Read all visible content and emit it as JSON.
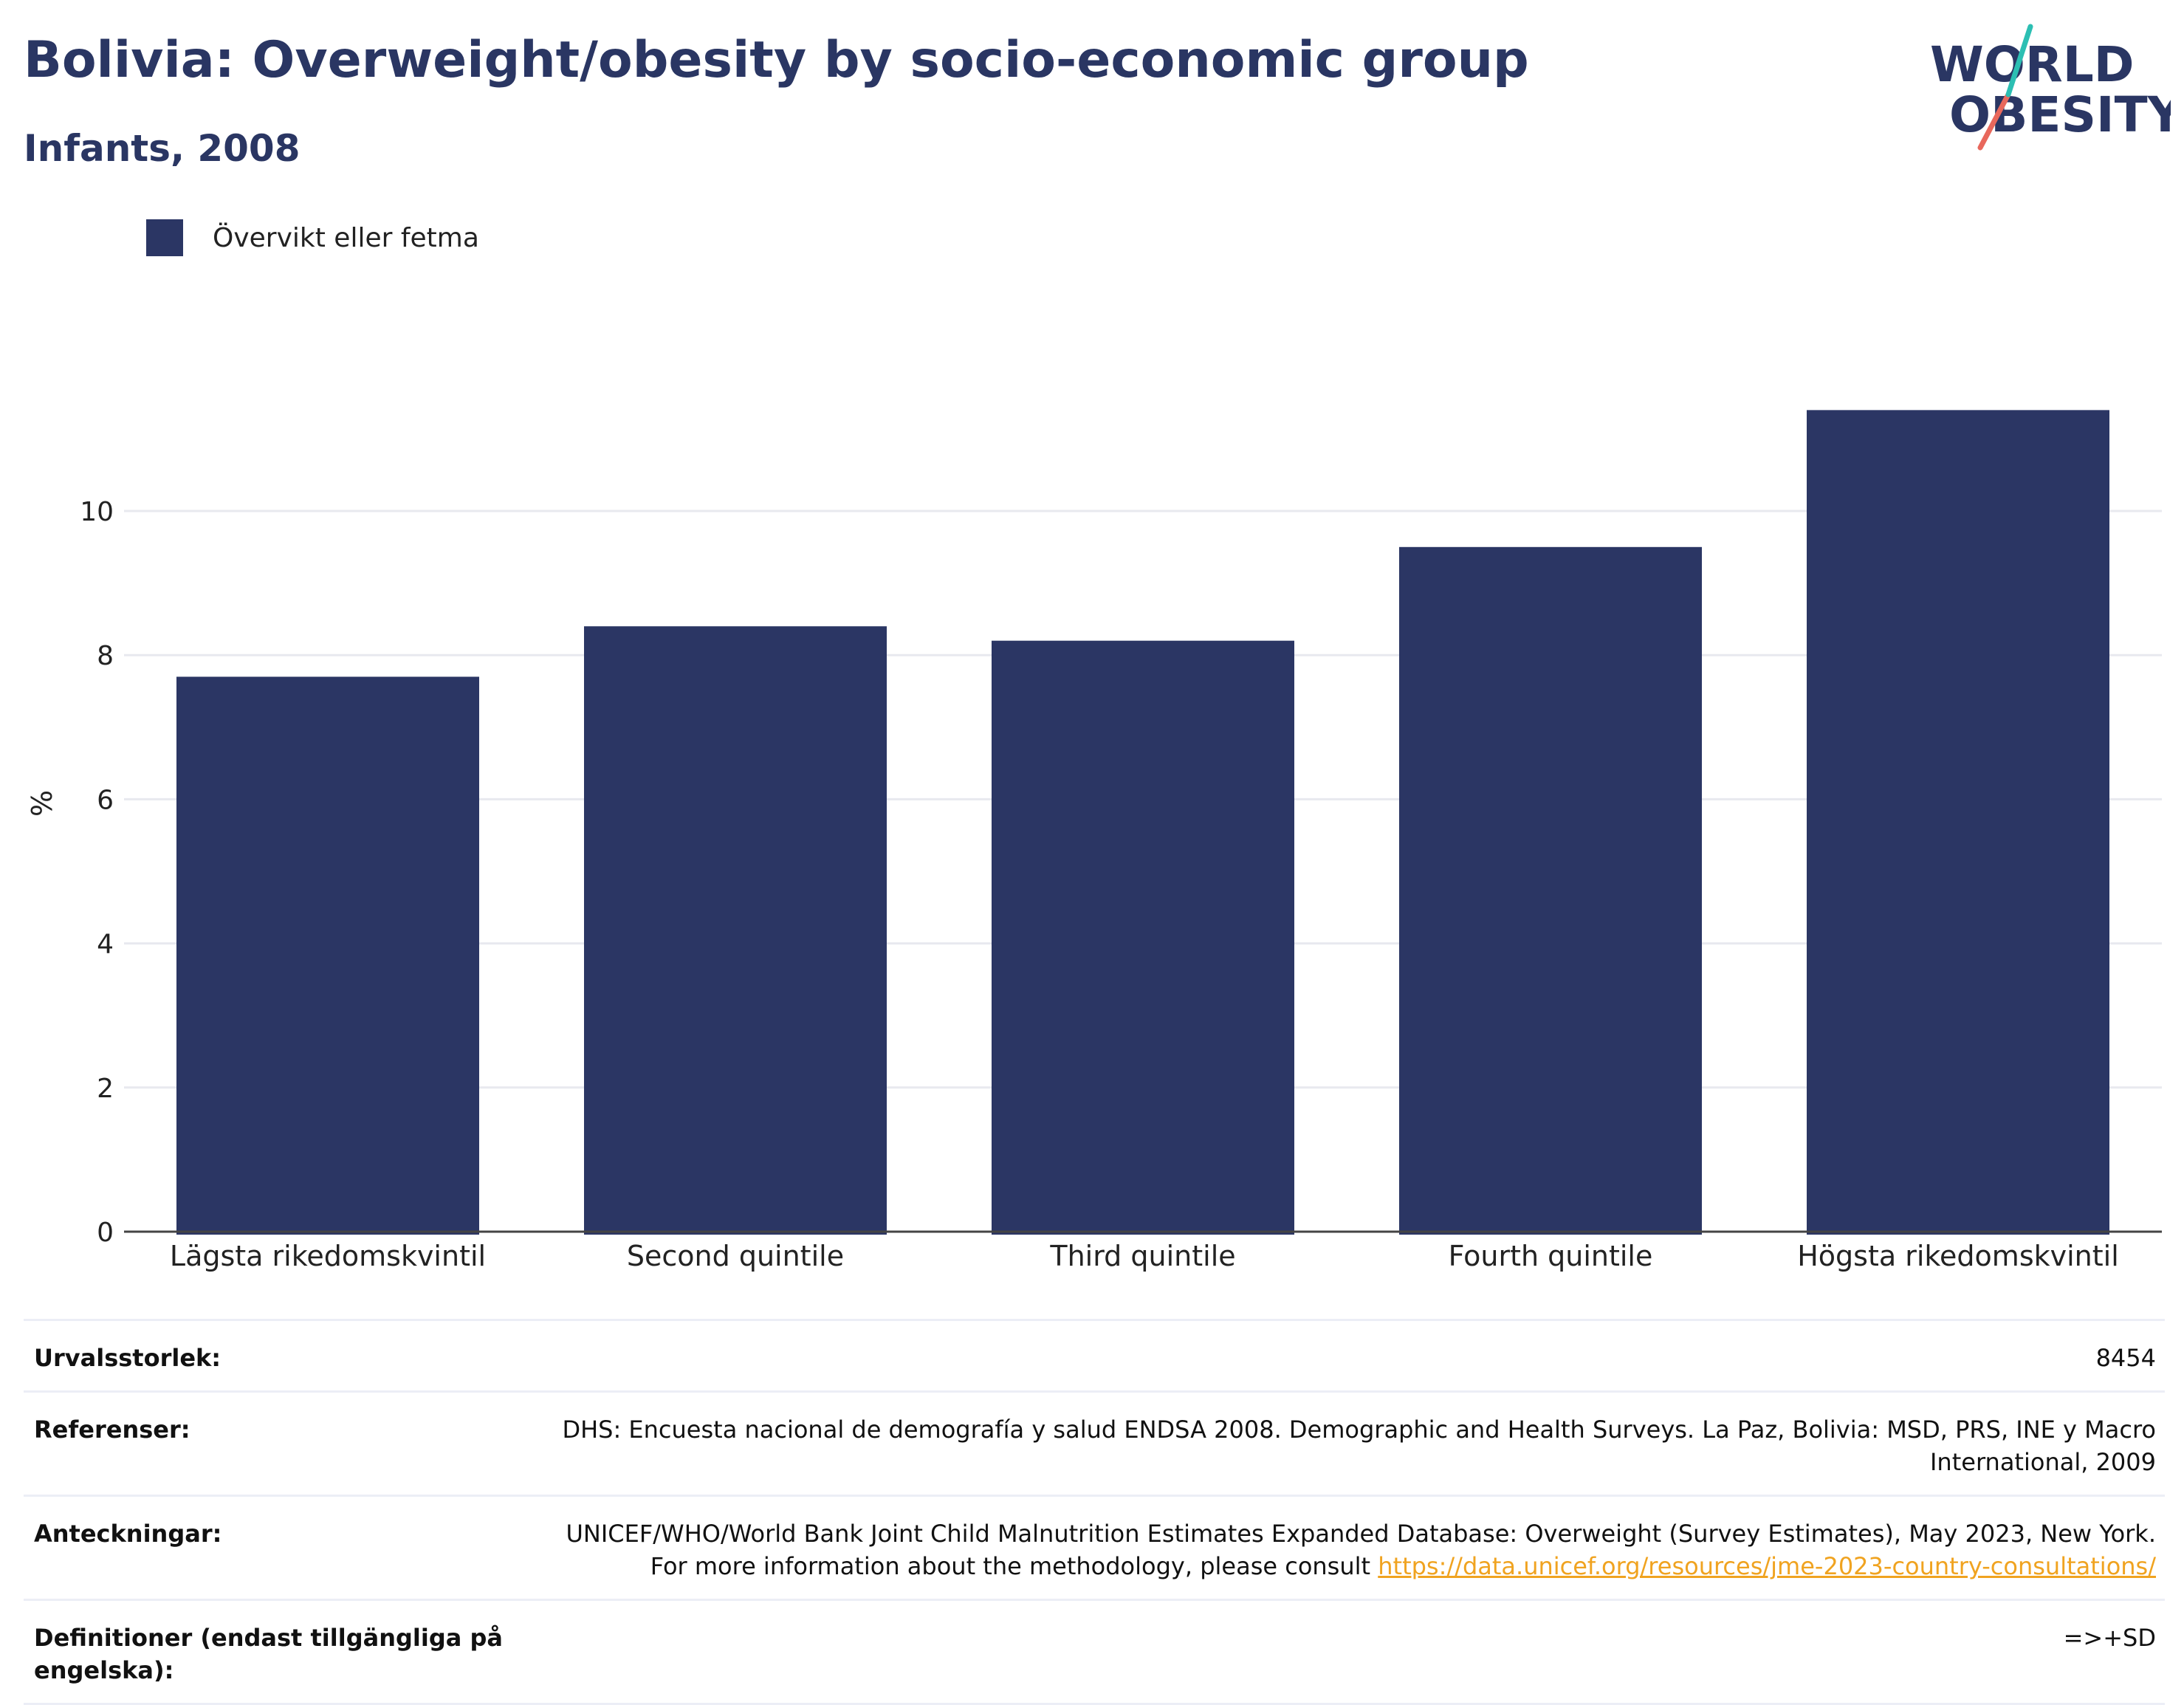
{
  "header": {
    "title": "Bolivia: Overweight/obesity by socio-economic group",
    "subtitle": "Infants, 2008"
  },
  "logo": {
    "line1": "WORLD",
    "line2": "OBESITY"
  },
  "legend": {
    "label": "Övervikt eller fetma",
    "color": "#2b3664"
  },
  "chart_data": {
    "type": "bar",
    "categories": [
      "Lägsta rikedomskvintil",
      "Second quintile",
      "Third quintile",
      "Fourth quintile",
      "Högsta rikedomskvintil"
    ],
    "series": [
      {
        "name": "Övervikt eller fetma",
        "values": [
          7.7,
          8.4,
          8.2,
          9.5,
          11.4
        ],
        "color": "#2b3664"
      }
    ],
    "ylabel": "%",
    "ylim": [
      0,
      12.1
    ],
    "yticks": [
      0,
      2,
      4,
      6,
      8,
      10
    ],
    "grid": true,
    "legend_position": "top-left"
  },
  "footer": {
    "sample_label": "Urvalsstorlek:",
    "sample_value": "8454",
    "refs_label": "Referenser:",
    "refs_value": "DHS: Encuesta nacional de demografía y salud ENDSA 2008. Demographic and Health Surveys. La Paz, Bolivia: MSD, PRS, INE y Macro International, 2009",
    "notes_label": "Anteckningar:",
    "notes_value": "UNICEF/WHO/World Bank Joint Child Malnutrition Estimates Expanded Database: Overweight (Survey Estimates), May 2023, New York. For more information about the methodology, please consult",
    "notes_link": "https://data.unicef.org/resources/jme-2023-country-consultations/",
    "defs_label": "Definitioner (endast tillgängliga på engelska):",
    "defs_value": "=>+SD"
  }
}
